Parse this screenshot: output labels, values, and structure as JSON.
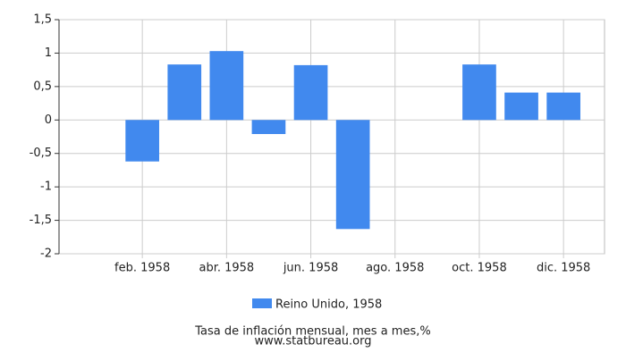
{
  "chart_data": {
    "type": "bar",
    "categories": [
      null,
      "feb. 1958",
      null,
      "abr. 1958",
      null,
      "jun. 1958",
      null,
      "ago. 1958",
      null,
      "oct. 1958",
      null,
      "dic. 1958"
    ],
    "series": [
      {
        "name": "Reino Unido, 1958",
        "color": "#4189ee",
        "values": [
          0,
          -0.62,
          0.83,
          1.03,
          -0.21,
          0.82,
          -1.63,
          0,
          0,
          0.83,
          0.41,
          0.41
        ]
      }
    ],
    "ylim": [
      -2,
      1.5
    ],
    "yticks": [
      {
        "value": 1.5,
        "label": "1,5"
      },
      1,
      {
        "value": 0.5,
        "label": "0,5"
      },
      0,
      {
        "value": -0.5,
        "label": "-0,5"
      },
      -1,
      {
        "value": -1.5,
        "label": "-1,5"
      },
      -2
    ],
    "grid": true,
    "xlabel": "Tasa de inflación mensual, mes a mes,%",
    "source": "www.statbureau.org"
  }
}
